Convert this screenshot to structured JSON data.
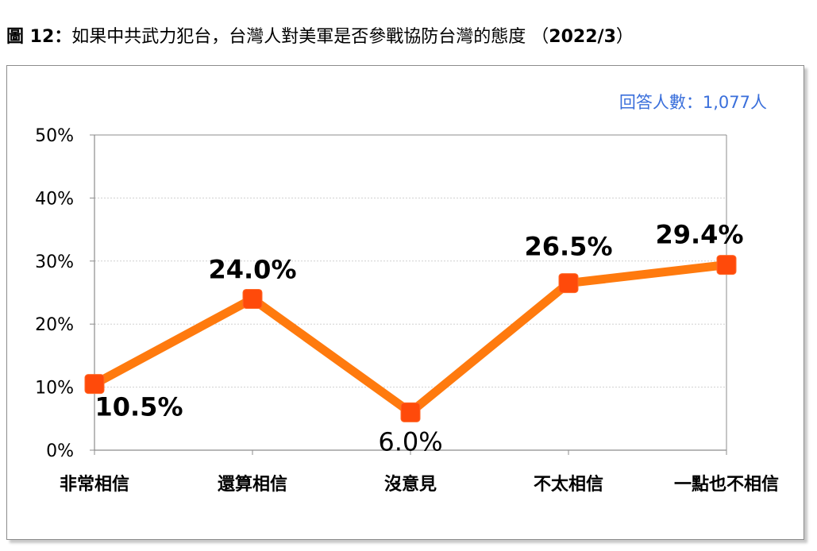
{
  "figure": {
    "label": "圖 12",
    "separator": "：",
    "caption": "如果中共武力犯台，台灣人對美軍是否參戰協防台灣的態度 （",
    "date": "2022/3",
    "caption_end": "）"
  },
  "respondents_note": "回答人數：1,077人",
  "chart_data": {
    "type": "line",
    "categories": [
      "非常相信",
      "還算相信",
      "沒意見",
      "不太相信",
      "一點也不相信"
    ],
    "series": [
      {
        "values": [
          10.5,
          24.0,
          6.0,
          26.5,
          29.4
        ]
      }
    ],
    "data_labels": [
      "10.5%",
      "24.0%",
      "6.0%",
      "26.5%",
      "29.4%"
    ],
    "y_ticks": [
      "0%",
      "10%",
      "20%",
      "30%",
      "40%",
      "50%"
    ],
    "ylim": [
      0,
      50
    ],
    "grid": true,
    "legend": "none",
    "colors": {
      "line": "#ff7a0e",
      "marker": "#ff4a0a",
      "note": "#3a6fdb"
    }
  }
}
